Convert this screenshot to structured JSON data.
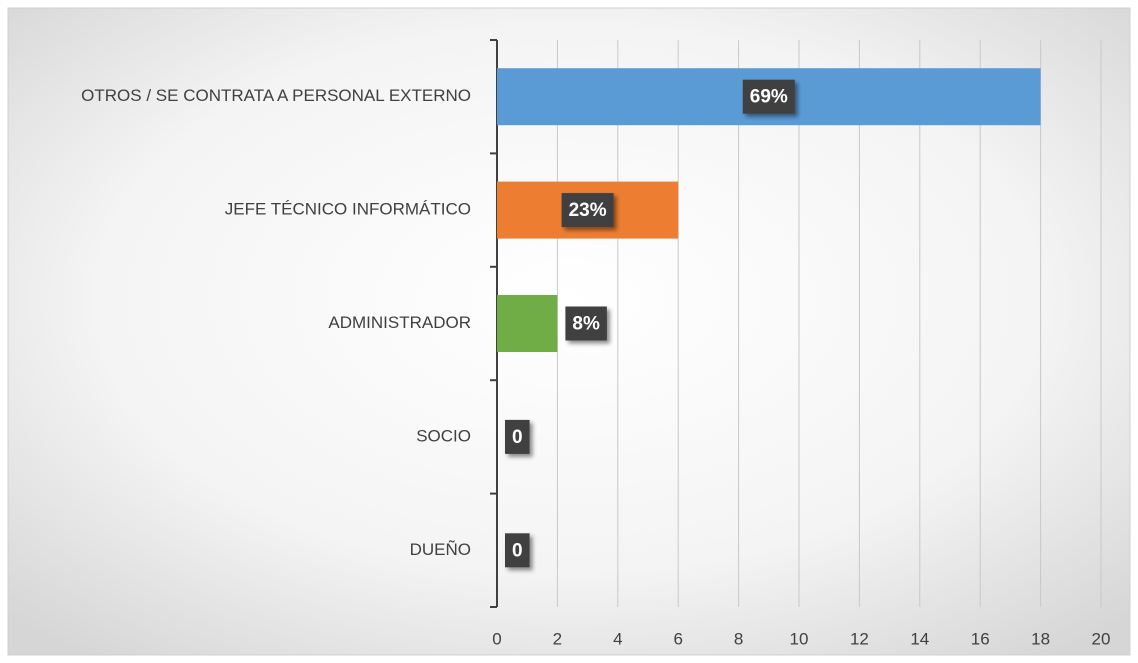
{
  "chart_data": {
    "type": "hbar",
    "categories": [
      "OTROS / SE CONTRATA A PERSONAL EXTERNO",
      "JEFE TÉCNICO INFORMÁTICO",
      "ADMINISTRADOR",
      "SOCIO",
      "DUEÑO"
    ],
    "values": [
      18,
      6,
      2,
      0,
      0
    ],
    "value_labels": [
      "69%",
      "23%",
      "8%",
      "0",
      "0"
    ],
    "colors": [
      "#5b9bd5",
      "#ed7d31",
      "#70ad47",
      "#a5a5a5",
      "#ffc000"
    ],
    "xlim": [
      0,
      20
    ],
    "xticks": [
      0,
      2,
      4,
      6,
      8,
      10,
      12,
      14,
      16,
      18,
      20
    ],
    "grid": true
  }
}
